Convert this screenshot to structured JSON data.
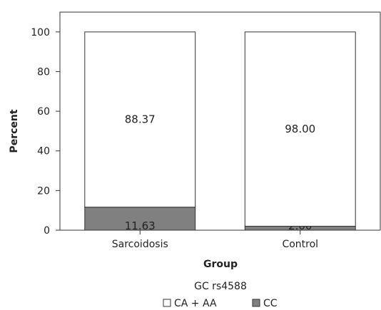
{
  "chart_data": {
    "type": "bar",
    "stacked": true,
    "categories": [
      "Sarcoidosis",
      "Control"
    ],
    "series": [
      {
        "name": "CC",
        "values": [
          11.63,
          2.0
        ],
        "labels": [
          "11.63",
          "2.00"
        ],
        "color": "#808080"
      },
      {
        "name": "CA + AA",
        "values": [
          88.37,
          98.0
        ],
        "labels": [
          "88.37",
          "98.00"
        ],
        "color": "#ffffff"
      }
    ],
    "xlabel": "Group",
    "ylabel": "Percent",
    "ylim": [
      0,
      110
    ],
    "yticks": [
      0,
      20,
      40,
      60,
      80,
      100
    ],
    "legend_title": "GC rs4588",
    "legend_position": "bottom",
    "grid": false
  }
}
